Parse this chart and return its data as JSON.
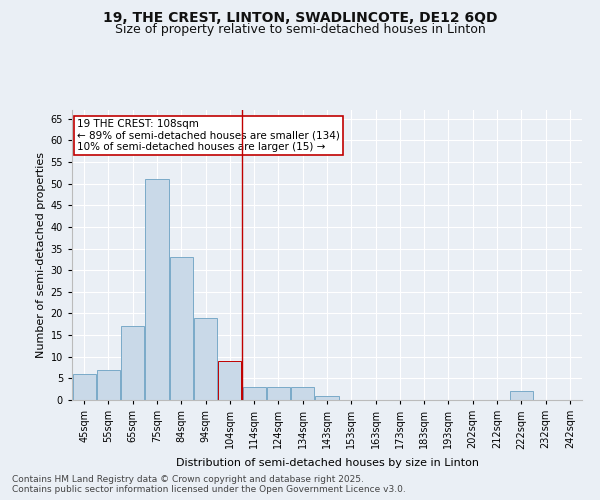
{
  "title1": "19, THE CREST, LINTON, SWADLINCOTE, DE12 6QD",
  "title2": "Size of property relative to semi-detached houses in Linton",
  "xlabel": "Distribution of semi-detached houses by size in Linton",
  "ylabel": "Number of semi-detached properties",
  "bins": [
    "45sqm",
    "55sqm",
    "65sqm",
    "75sqm",
    "84sqm",
    "94sqm",
    "104sqm",
    "114sqm",
    "124sqm",
    "134sqm",
    "143sqm",
    "153sqm",
    "163sqm",
    "173sqm",
    "183sqm",
    "193sqm",
    "202sqm",
    "212sqm",
    "222sqm",
    "232sqm",
    "242sqm"
  ],
  "values": [
    6,
    7,
    17,
    51,
    33,
    19,
    9,
    3,
    3,
    3,
    1,
    0,
    0,
    0,
    0,
    0,
    0,
    0,
    2,
    0,
    0
  ],
  "bar_color": "#c9d9e8",
  "bar_edge_color": "#7aaac8",
  "highlight_bar_index": 6,
  "highlight_bar_color": "#c9d9e8",
  "highlight_bar_edge_color": "#c00000",
  "vline_x": 6.5,
  "vline_color": "#c00000",
  "annotation_title": "19 THE CREST: 108sqm",
  "annotation_line1": "← 89% of semi-detached houses are smaller (134)",
  "annotation_line2": "10% of semi-detached houses are larger (15) →",
  "annotation_box_color": "#ffffff",
  "annotation_box_edge": "#c00000",
  "ylim": [
    0,
    67
  ],
  "yticks": [
    0,
    5,
    10,
    15,
    20,
    25,
    30,
    35,
    40,
    45,
    50,
    55,
    60,
    65
  ],
  "bg_color": "#eaeff5",
  "plot_bg_color": "#eaeff5",
  "grid_color": "#ffffff",
  "footer1": "Contains HM Land Registry data © Crown copyright and database right 2025.",
  "footer2": "Contains public sector information licensed under the Open Government Licence v3.0.",
  "title_fontsize": 10,
  "subtitle_fontsize": 9,
  "axis_label_fontsize": 8,
  "tick_fontsize": 7,
  "annotation_fontsize": 7.5,
  "footer_fontsize": 6.5
}
